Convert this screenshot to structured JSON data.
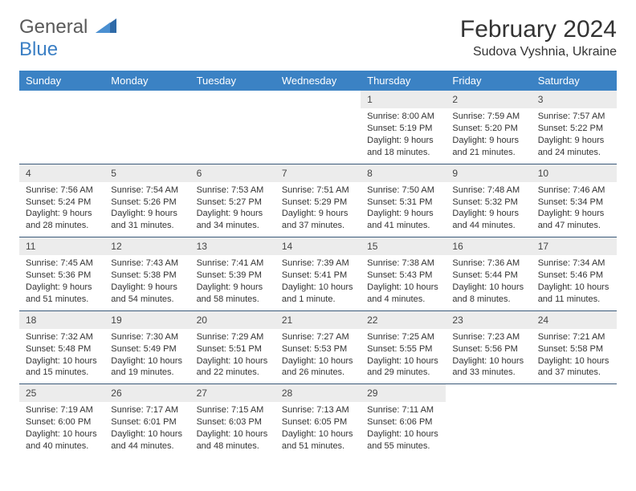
{
  "brand": {
    "part1": "General",
    "part2": "Blue"
  },
  "title": "February 2024",
  "location": "Sudova Vyshnia, Ukraine",
  "colors": {
    "header_bg": "#3b82c4",
    "header_text": "#ffffff",
    "daynum_bg": "#ececec",
    "week_border": "#3b5a7a",
    "text": "#333333",
    "logo_gray": "#5a5a5a",
    "logo_blue": "#3b7fc4"
  },
  "dayNames": [
    "Sunday",
    "Monday",
    "Tuesday",
    "Wednesday",
    "Thursday",
    "Friday",
    "Saturday"
  ],
  "weeks": [
    [
      {
        "n": "",
        "empty": true
      },
      {
        "n": "",
        "empty": true
      },
      {
        "n": "",
        "empty": true
      },
      {
        "n": "",
        "empty": true
      },
      {
        "n": "1",
        "sr": "Sunrise: 8:00 AM",
        "ss": "Sunset: 5:19 PM",
        "dl1": "Daylight: 9 hours",
        "dl2": "and 18 minutes."
      },
      {
        "n": "2",
        "sr": "Sunrise: 7:59 AM",
        "ss": "Sunset: 5:20 PM",
        "dl1": "Daylight: 9 hours",
        "dl2": "and 21 minutes."
      },
      {
        "n": "3",
        "sr": "Sunrise: 7:57 AM",
        "ss": "Sunset: 5:22 PM",
        "dl1": "Daylight: 9 hours",
        "dl2": "and 24 minutes."
      }
    ],
    [
      {
        "n": "4",
        "sr": "Sunrise: 7:56 AM",
        "ss": "Sunset: 5:24 PM",
        "dl1": "Daylight: 9 hours",
        "dl2": "and 28 minutes."
      },
      {
        "n": "5",
        "sr": "Sunrise: 7:54 AM",
        "ss": "Sunset: 5:26 PM",
        "dl1": "Daylight: 9 hours",
        "dl2": "and 31 minutes."
      },
      {
        "n": "6",
        "sr": "Sunrise: 7:53 AM",
        "ss": "Sunset: 5:27 PM",
        "dl1": "Daylight: 9 hours",
        "dl2": "and 34 minutes."
      },
      {
        "n": "7",
        "sr": "Sunrise: 7:51 AM",
        "ss": "Sunset: 5:29 PM",
        "dl1": "Daylight: 9 hours",
        "dl2": "and 37 minutes."
      },
      {
        "n": "8",
        "sr": "Sunrise: 7:50 AM",
        "ss": "Sunset: 5:31 PM",
        "dl1": "Daylight: 9 hours",
        "dl2": "and 41 minutes."
      },
      {
        "n": "9",
        "sr": "Sunrise: 7:48 AM",
        "ss": "Sunset: 5:32 PM",
        "dl1": "Daylight: 9 hours",
        "dl2": "and 44 minutes."
      },
      {
        "n": "10",
        "sr": "Sunrise: 7:46 AM",
        "ss": "Sunset: 5:34 PM",
        "dl1": "Daylight: 9 hours",
        "dl2": "and 47 minutes."
      }
    ],
    [
      {
        "n": "11",
        "sr": "Sunrise: 7:45 AM",
        "ss": "Sunset: 5:36 PM",
        "dl1": "Daylight: 9 hours",
        "dl2": "and 51 minutes."
      },
      {
        "n": "12",
        "sr": "Sunrise: 7:43 AM",
        "ss": "Sunset: 5:38 PM",
        "dl1": "Daylight: 9 hours",
        "dl2": "and 54 minutes."
      },
      {
        "n": "13",
        "sr": "Sunrise: 7:41 AM",
        "ss": "Sunset: 5:39 PM",
        "dl1": "Daylight: 9 hours",
        "dl2": "and 58 minutes."
      },
      {
        "n": "14",
        "sr": "Sunrise: 7:39 AM",
        "ss": "Sunset: 5:41 PM",
        "dl1": "Daylight: 10 hours",
        "dl2": "and 1 minute."
      },
      {
        "n": "15",
        "sr": "Sunrise: 7:38 AM",
        "ss": "Sunset: 5:43 PM",
        "dl1": "Daylight: 10 hours",
        "dl2": "and 4 minutes."
      },
      {
        "n": "16",
        "sr": "Sunrise: 7:36 AM",
        "ss": "Sunset: 5:44 PM",
        "dl1": "Daylight: 10 hours",
        "dl2": "and 8 minutes."
      },
      {
        "n": "17",
        "sr": "Sunrise: 7:34 AM",
        "ss": "Sunset: 5:46 PM",
        "dl1": "Daylight: 10 hours",
        "dl2": "and 11 minutes."
      }
    ],
    [
      {
        "n": "18",
        "sr": "Sunrise: 7:32 AM",
        "ss": "Sunset: 5:48 PM",
        "dl1": "Daylight: 10 hours",
        "dl2": "and 15 minutes."
      },
      {
        "n": "19",
        "sr": "Sunrise: 7:30 AM",
        "ss": "Sunset: 5:49 PM",
        "dl1": "Daylight: 10 hours",
        "dl2": "and 19 minutes."
      },
      {
        "n": "20",
        "sr": "Sunrise: 7:29 AM",
        "ss": "Sunset: 5:51 PM",
        "dl1": "Daylight: 10 hours",
        "dl2": "and 22 minutes."
      },
      {
        "n": "21",
        "sr": "Sunrise: 7:27 AM",
        "ss": "Sunset: 5:53 PM",
        "dl1": "Daylight: 10 hours",
        "dl2": "and 26 minutes."
      },
      {
        "n": "22",
        "sr": "Sunrise: 7:25 AM",
        "ss": "Sunset: 5:55 PM",
        "dl1": "Daylight: 10 hours",
        "dl2": "and 29 minutes."
      },
      {
        "n": "23",
        "sr": "Sunrise: 7:23 AM",
        "ss": "Sunset: 5:56 PM",
        "dl1": "Daylight: 10 hours",
        "dl2": "and 33 minutes."
      },
      {
        "n": "24",
        "sr": "Sunrise: 7:21 AM",
        "ss": "Sunset: 5:58 PM",
        "dl1": "Daylight: 10 hours",
        "dl2": "and 37 minutes."
      }
    ],
    [
      {
        "n": "25",
        "sr": "Sunrise: 7:19 AM",
        "ss": "Sunset: 6:00 PM",
        "dl1": "Daylight: 10 hours",
        "dl2": "and 40 minutes."
      },
      {
        "n": "26",
        "sr": "Sunrise: 7:17 AM",
        "ss": "Sunset: 6:01 PM",
        "dl1": "Daylight: 10 hours",
        "dl2": "and 44 minutes."
      },
      {
        "n": "27",
        "sr": "Sunrise: 7:15 AM",
        "ss": "Sunset: 6:03 PM",
        "dl1": "Daylight: 10 hours",
        "dl2": "and 48 minutes."
      },
      {
        "n": "28",
        "sr": "Sunrise: 7:13 AM",
        "ss": "Sunset: 6:05 PM",
        "dl1": "Daylight: 10 hours",
        "dl2": "and 51 minutes."
      },
      {
        "n": "29",
        "sr": "Sunrise: 7:11 AM",
        "ss": "Sunset: 6:06 PM",
        "dl1": "Daylight: 10 hours",
        "dl2": "and 55 minutes."
      },
      {
        "n": "",
        "empty": true
      },
      {
        "n": "",
        "empty": true
      }
    ]
  ]
}
